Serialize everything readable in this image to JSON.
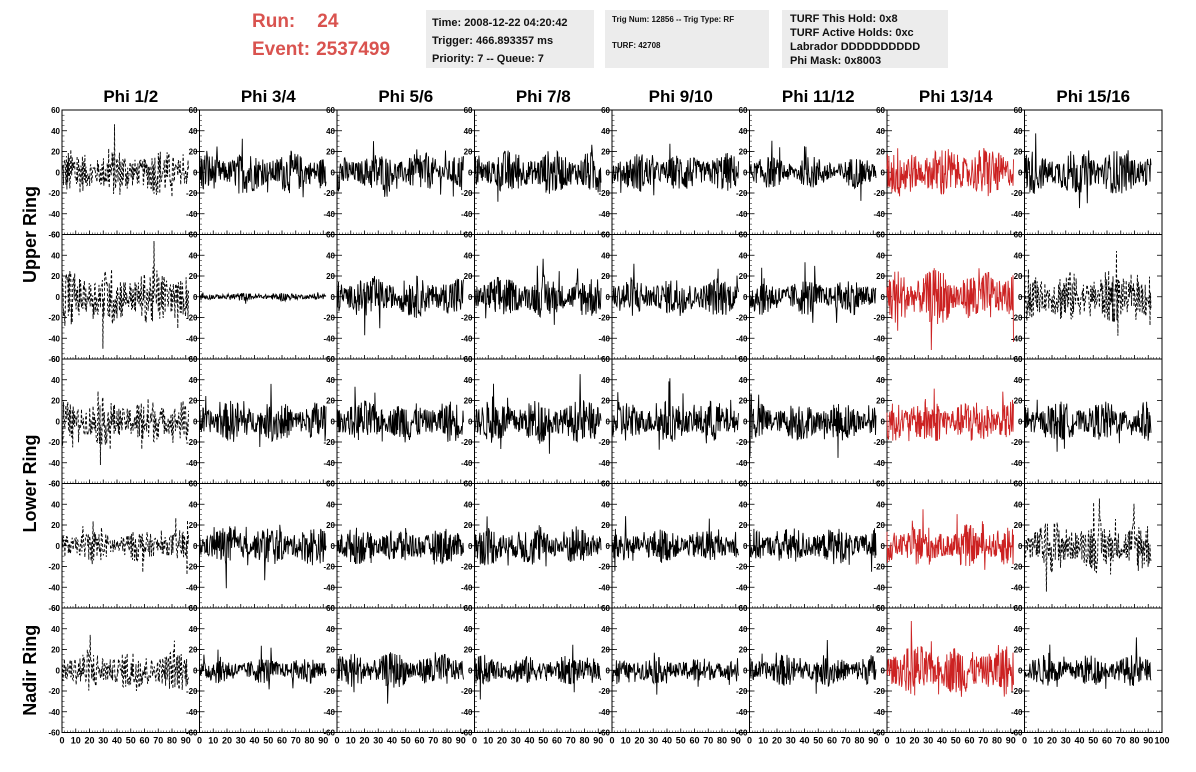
{
  "header": {
    "run_label": "Run:",
    "run_value": "24",
    "event_label": "Event:",
    "event_value": "2537499",
    "time": "Time: 2008-12-22 04:20:42",
    "trigger": "Trigger: 466.893357 ms",
    "priority": "Priority: 7 -- Queue: 7",
    "trig_num": "Trig Num: 12856 -- Trig Type: RF",
    "turf": "TURF: 42708",
    "turf_this_hold": "TURF This Hold: 0x8",
    "turf_active_holds": "TURF Active Holds: 0xc",
    "labrador": "Labrador DDDDDDDDDD",
    "phi_mask": "Phi Mask: 0x8003"
  },
  "colors": {
    "trace": "#000000",
    "highlight": "#cc2222",
    "run_text": "#d9534f",
    "info_bg": "#ececec"
  },
  "chart_data": {
    "type": "line",
    "columns": [
      "Phi 1/2",
      "Phi 3/4",
      "Phi 5/6",
      "Phi 7/8",
      "Phi 9/10",
      "Phi 11/12",
      "Phi 13/14",
      "Phi 15/16"
    ],
    "ring_labels": [
      {
        "name": "Upper Ring",
        "rows": [
          0,
          1
        ]
      },
      {
        "name": "Lower Ring",
        "rows": [
          2,
          3
        ]
      },
      {
        "name": "Nadir Ring",
        "rows": [
          4
        ]
      }
    ],
    "xlim": [
      0,
      100
    ],
    "ylim": [
      -60,
      60
    ],
    "xticks": [
      "0",
      "10",
      "20",
      "30",
      "40",
      "50",
      "60",
      "70",
      "80",
      "90",
      "100"
    ],
    "yticks": [
      "-60",
      "-40",
      "-20",
      "0",
      "20",
      "40",
      "60"
    ],
    "highlight_column": 6,
    "traces": [
      [
        {
          "style": "dashed",
          "amp": 18
        },
        {
          "style": "solid",
          "amp": 16
        },
        {
          "style": "solid",
          "amp": 15
        },
        {
          "style": "solid",
          "amp": 17
        },
        {
          "style": "solid",
          "amp": 15
        },
        {
          "style": "solid",
          "amp": 12
        },
        {
          "style": "solid",
          "amp": 20
        },
        {
          "style": "solid",
          "amp": 17
        }
      ],
      [
        {
          "style": "dashed",
          "amp": 22
        },
        {
          "style": "solid",
          "amp": 3
        },
        {
          "style": "solid",
          "amp": 16
        },
        {
          "style": "solid",
          "amp": 16
        },
        {
          "style": "solid",
          "amp": 15
        },
        {
          "style": "solid",
          "amp": 14
        },
        {
          "style": "solid",
          "amp": 22
        },
        {
          "style": "dashed",
          "amp": 20
        }
      ],
      [
        {
          "style": "dashed",
          "amp": 18
        },
        {
          "style": "solid",
          "amp": 16
        },
        {
          "style": "solid",
          "amp": 16
        },
        {
          "style": "solid",
          "amp": 17
        },
        {
          "style": "solid",
          "amp": 16
        },
        {
          "style": "solid",
          "amp": 15
        },
        {
          "style": "solid",
          "amp": 18
        },
        {
          "style": "solid",
          "amp": 15
        }
      ],
      [
        {
          "style": "dashed",
          "amp": 12
        },
        {
          "style": "solid",
          "amp": 15
        },
        {
          "style": "solid",
          "amp": 14
        },
        {
          "style": "solid",
          "amp": 15
        },
        {
          "style": "solid",
          "amp": 13
        },
        {
          "style": "solid",
          "amp": 14
        },
        {
          "style": "solid",
          "amp": 16
        },
        {
          "style": "dashed",
          "amp": 20
        }
      ],
      [
        {
          "style": "dashed",
          "amp": 16
        },
        {
          "style": "solid",
          "amp": 10
        },
        {
          "style": "solid",
          "amp": 14
        },
        {
          "style": "solid",
          "amp": 11
        },
        {
          "style": "solid",
          "amp": 10
        },
        {
          "style": "solid",
          "amp": 12
        },
        {
          "style": "solid",
          "amp": 20
        },
        {
          "style": "solid",
          "amp": 12
        }
      ]
    ]
  }
}
